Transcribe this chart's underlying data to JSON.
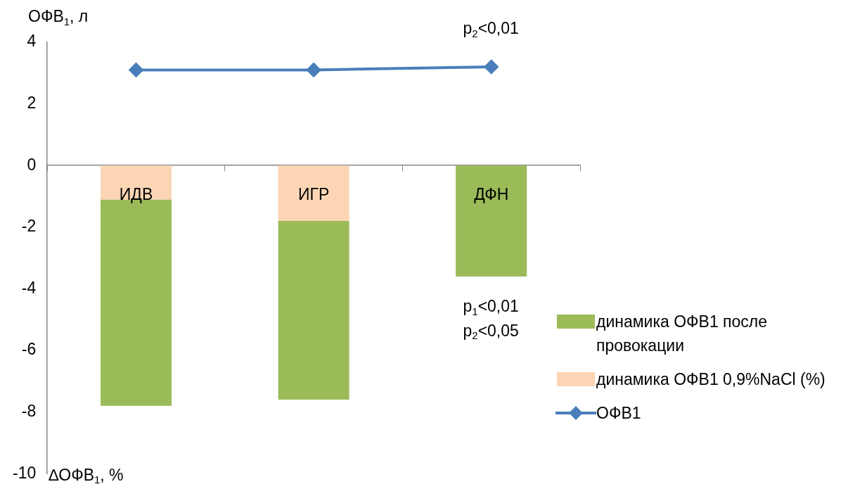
{
  "chart_data": {
    "type": "bar",
    "stacked": true,
    "categories": [
      "ИДВ",
      "ИГР",
      "ДФН"
    ],
    "ylabel": "ОФВ$_{1}$, л",
    "ylim": [
      -10,
      4
    ],
    "yticks": [
      -10,
      -8,
      -6,
      -4,
      -2,
      0,
      2,
      4
    ],
    "grid": false,
    "legend": "right",
    "marker": "diamond",
    "series": [
      {
        "name": "динамика ОФВ1 0,9%NaCl (%)",
        "color": "#fcd5b5",
        "values": [
          -1.1,
          -1.8,
          null
        ]
      },
      {
        "name": "динамика ОФВ1 после провокации",
        "color": "#9bbb59",
        "values": [
          -6.7,
          -5.8,
          -3.6
        ]
      },
      {
        "name": "ОФВ1",
        "type": "line",
        "color": "#4a7ebb",
        "values": [
          3.1,
          3.1,
          3.2
        ]
      }
    ],
    "annotations": [
      "∆ОФВ$_{1}$, %",
      "p$_{2}$<0,01",
      "p$_{1}$<0,01",
      "p$_{2}$<0,05"
    ]
  }
}
